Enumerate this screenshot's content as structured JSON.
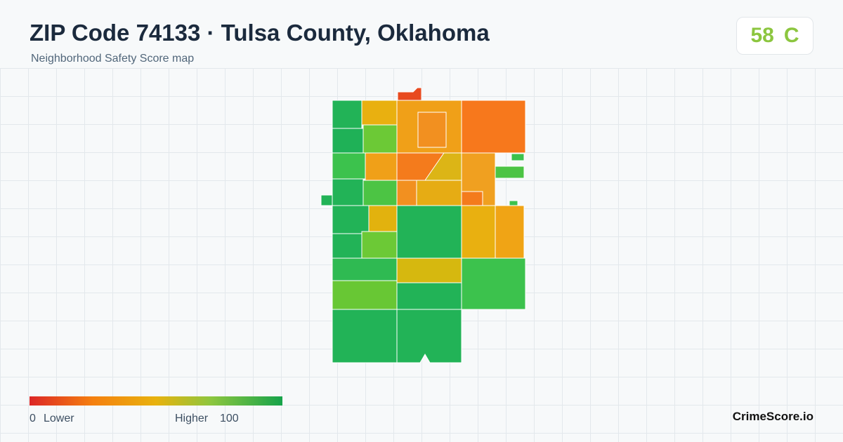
{
  "header": {
    "title": "ZIP Code 74133 · Tulsa County, Oklahoma",
    "subtitle": "Neighborhood Safety Score map"
  },
  "score": {
    "value": 58,
    "grade": "C"
  },
  "legend": {
    "min": 0,
    "min_label": "Lower",
    "max_label": "Higher",
    "max": 100
  },
  "brand": "CrimeScore.io"
}
